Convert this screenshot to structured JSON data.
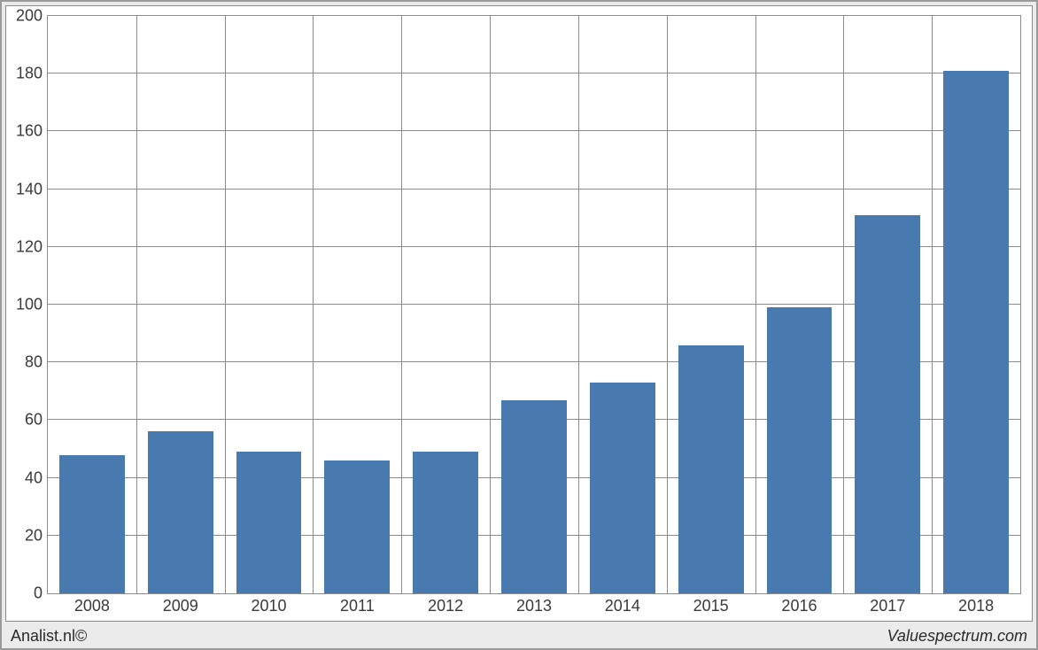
{
  "chart": {
    "type": "bar",
    "categories": [
      "2008",
      "2009",
      "2010",
      "2011",
      "2012",
      "2013",
      "2014",
      "2015",
      "2016",
      "2017",
      "2018"
    ],
    "values": [
      48,
      56,
      49,
      46,
      49,
      67,
      73,
      86,
      99,
      131,
      181
    ],
    "bar_color": "#4879af",
    "background_color": "#ffffff",
    "grid_color": "#8c8c8c",
    "panel_background": "#ebebeb",
    "border_color": "#9a9a9a",
    "ylim": [
      0,
      200
    ],
    "ytick_step": 20,
    "yticks": [
      0,
      20,
      40,
      60,
      80,
      100,
      120,
      140,
      160,
      180,
      200
    ],
    "bar_width_ratio": 0.74,
    "label_fontsize": 18,
    "label_color": "#3a3a3a"
  },
  "footer": {
    "left": "Analist.nl©",
    "right": "Valuespectrum.com"
  }
}
